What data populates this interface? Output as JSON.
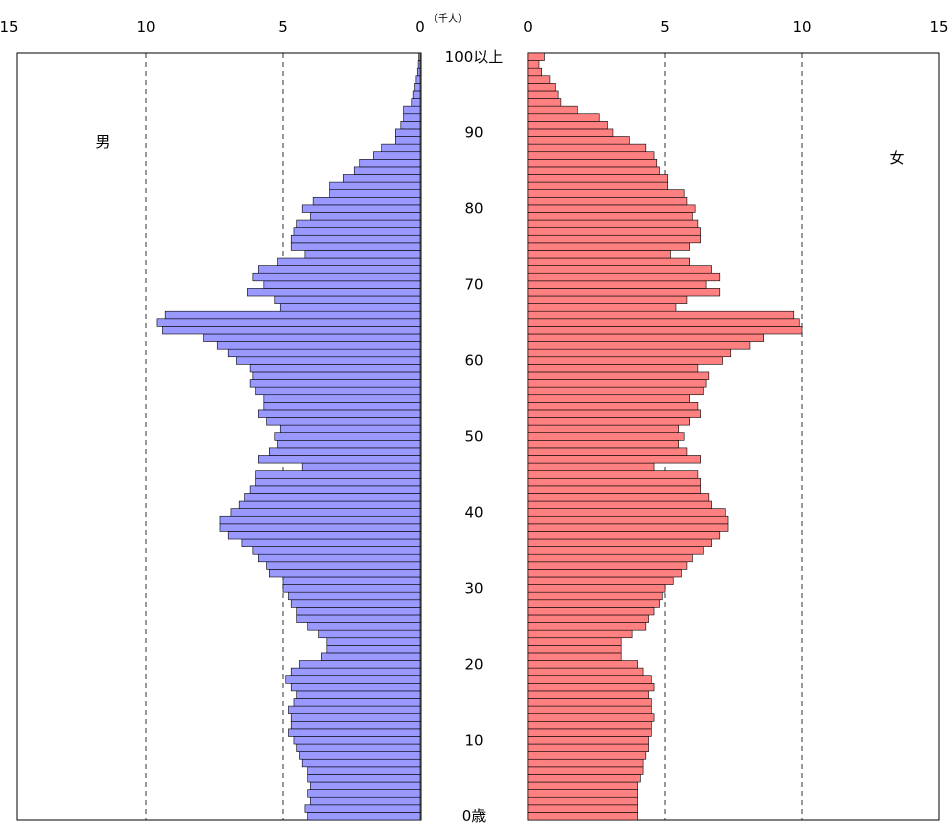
{
  "chart_data": {
    "type": "bar",
    "orientation": "horizontal",
    "layout": "population-pyramid",
    "unit_label": "（千人）",
    "x_ticks_male": [
      "15",
      "10",
      "5",
      "0"
    ],
    "x_ticks_female": [
      "0",
      "5",
      "10",
      "15"
    ],
    "xlim": [
      0,
      15
    ],
    "grid": "dashed vertical at 5 and 10",
    "age_labels": [
      {
        "age": 0,
        "text": "0歳"
      },
      {
        "age": 10,
        "text": "10"
      },
      {
        "age": 20,
        "text": "20"
      },
      {
        "age": 30,
        "text": "30"
      },
      {
        "age": 40,
        "text": "40"
      },
      {
        "age": 50,
        "text": "50"
      },
      {
        "age": 60,
        "text": "60"
      },
      {
        "age": 70,
        "text": "70"
      },
      {
        "age": 80,
        "text": "80"
      },
      {
        "age": 90,
        "text": "90"
      },
      {
        "age": 100,
        "text": "100以上"
      }
    ],
    "series": [
      {
        "name": "男",
        "color": "#9999ff",
        "values": [
          4.1,
          4.2,
          4.0,
          4.1,
          4.0,
          4.1,
          4.1,
          4.3,
          4.4,
          4.5,
          4.6,
          4.8,
          4.7,
          4.7,
          4.8,
          4.6,
          4.5,
          4.7,
          4.9,
          4.7,
          4.4,
          3.6,
          3.4,
          3.4,
          3.7,
          4.1,
          4.5,
          4.5,
          4.7,
          4.8,
          5.0,
          5.0,
          5.5,
          5.6,
          5.9,
          6.1,
          6.5,
          7.0,
          7.3,
          7.3,
          6.9,
          6.6,
          6.4,
          6.2,
          6.0,
          6.0,
          4.3,
          5.9,
          5.5,
          5.2,
          5.3,
          5.1,
          5.6,
          5.9,
          5.7,
          5.7,
          6.0,
          6.2,
          6.1,
          6.2,
          6.7,
          7.0,
          7.4,
          7.9,
          9.4,
          9.6,
          9.3,
          5.1,
          5.3,
          6.3,
          5.7,
          6.1,
          5.9,
          5.2,
          4.2,
          4.7,
          4.7,
          4.6,
          4.5,
          4.0,
          4.3,
          3.9,
          3.3,
          3.3,
          2.8,
          2.4,
          2.2,
          1.7,
          1.4,
          0.9,
          0.9,
          0.7,
          0.6,
          0.6,
          0.3,
          0.25,
          0.2,
          0.15,
          0.1,
          0.07,
          0.05
        ]
      },
      {
        "name": "女",
        "color": "#ff8080",
        "values": [
          4.0,
          4.0,
          4.0,
          4.0,
          4.0,
          4.1,
          4.2,
          4.2,
          4.3,
          4.4,
          4.4,
          4.5,
          4.5,
          4.6,
          4.5,
          4.5,
          4.4,
          4.6,
          4.5,
          4.2,
          4.0,
          3.4,
          3.4,
          3.4,
          3.8,
          4.3,
          4.4,
          4.6,
          4.8,
          4.9,
          5.0,
          5.3,
          5.6,
          5.8,
          6.0,
          6.4,
          6.7,
          7.0,
          7.3,
          7.3,
          7.2,
          6.7,
          6.6,
          6.3,
          6.3,
          6.2,
          4.6,
          6.3,
          5.8,
          5.5,
          5.7,
          5.5,
          5.9,
          6.3,
          6.2,
          5.9,
          6.4,
          6.5,
          6.6,
          6.2,
          7.1,
          7.4,
          8.1,
          8.6,
          10.0,
          9.9,
          9.7,
          5.4,
          5.8,
          7.0,
          6.5,
          7.0,
          6.7,
          5.9,
          5.2,
          5.9,
          6.3,
          6.3,
          6.2,
          6.0,
          6.1,
          5.8,
          5.7,
          5.1,
          5.1,
          4.8,
          4.7,
          4.6,
          4.3,
          3.7,
          3.1,
          2.9,
          2.6,
          1.8,
          1.2,
          1.1,
          1.0,
          0.8,
          0.5,
          0.4,
          0.6
        ]
      }
    ]
  }
}
